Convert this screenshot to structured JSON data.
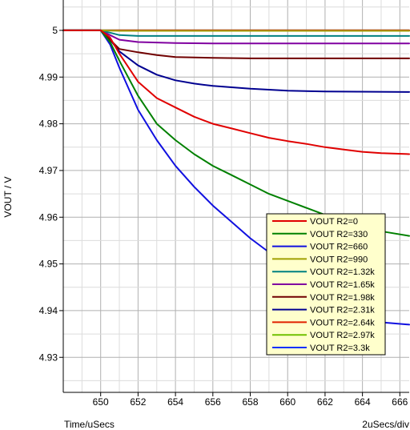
{
  "chart_data": {
    "type": "line",
    "title": "",
    "xlabel": "Time/uSecs",
    "ylabel": "VOUT / V",
    "x_scale_label": "2uSecs/div",
    "xlim": [
      648,
      666.5
    ],
    "ylim": [
      4.9225,
      5.0065
    ],
    "x_ticks": [
      650,
      652,
      654,
      656,
      658,
      660,
      662,
      664,
      666
    ],
    "y_ticks": [
      4.93,
      4.94,
      4.95,
      4.96,
      4.97,
      4.98,
      4.99,
      5
    ],
    "x_tick_labels": [
      "650",
      "652",
      "654",
      "656",
      "658",
      "660",
      "662",
      "664",
      "666"
    ],
    "y_tick_labels": [
      "4.93",
      "4.94",
      "4.95",
      "4.96",
      "4.97",
      "4.98",
      "4.99",
      "5"
    ],
    "grid": true,
    "legend_position": "bottom-right",
    "series": [
      {
        "name": "VOUT R2=0",
        "color": "#e00000",
        "x": [
          648,
          650,
          650.5,
          651,
          652,
          653,
          654,
          655,
          656,
          657,
          658,
          659,
          660,
          661,
          662,
          663,
          664,
          665,
          666.5
        ],
        "y": [
          5.0,
          5.0,
          4.9985,
          4.995,
          4.989,
          4.9855,
          4.9835,
          4.9815,
          4.98,
          4.979,
          4.978,
          4.977,
          4.9763,
          4.9757,
          4.975,
          4.9745,
          4.974,
          4.9737,
          4.9735
        ]
      },
      {
        "name": "VOUT R2=330",
        "color": "#008000",
        "x": [
          648,
          650,
          650.5,
          651,
          652,
          653,
          654,
          655,
          656,
          657,
          658,
          659,
          660,
          661,
          662,
          663,
          664,
          665,
          666.5
        ],
        "y": [
          5.0,
          5.0,
          4.9975,
          4.9935,
          4.986,
          4.98,
          4.9765,
          4.9735,
          4.971,
          4.969,
          4.967,
          4.965,
          4.9635,
          4.962,
          4.9605,
          4.959,
          4.958,
          4.957,
          4.956
        ]
      },
      {
        "name": "VOUT R2=660",
        "color": "#1010e0",
        "x": [
          648,
          650,
          650.5,
          651,
          652,
          653,
          654,
          655,
          656,
          657,
          658,
          659,
          660,
          661,
          662,
          663,
          664,
          665,
          666.5
        ],
        "y": [
          5.0,
          5.0,
          4.997,
          4.992,
          4.983,
          4.9765,
          4.971,
          4.9665,
          4.9625,
          4.959,
          4.9555,
          4.9525,
          4.9495,
          4.9465,
          4.9435,
          4.9405,
          4.9385,
          4.9375,
          4.937
        ]
      },
      {
        "name": "VOUT R2=990",
        "color": "#a0a000",
        "x": [
          648,
          650,
          650.5,
          651,
          652,
          666.5
        ],
        "y": [
          5.0,
          5.0,
          4.99995,
          4.9999,
          4.9999,
          4.9999
        ]
      },
      {
        "name": "VOUT R2=1.32k",
        "color": "#008080",
        "x": [
          648,
          650,
          650.5,
          651,
          652,
          654,
          666.5
        ],
        "y": [
          5.0,
          5.0,
          4.9995,
          4.999,
          4.9988,
          4.9988,
          4.9988
        ]
      },
      {
        "name": "VOUT R2=1.65k",
        "color": "#8000a0",
        "x": [
          648,
          650,
          650.5,
          651,
          652,
          654,
          656,
          666.5
        ],
        "y": [
          5.0,
          5.0,
          4.999,
          4.998,
          4.9975,
          4.9973,
          4.9972,
          4.9972
        ]
      },
      {
        "name": "VOUT R2=1.98k",
        "color": "#700000",
        "x": [
          648,
          650,
          650.5,
          651,
          652,
          653,
          654,
          656,
          658,
          666.5
        ],
        "y": [
          5.0,
          5.0,
          4.998,
          4.996,
          4.9953,
          4.9947,
          4.9943,
          4.9941,
          4.994,
          4.994
        ]
      },
      {
        "name": "VOUT R2=2.31k",
        "color": "#000090",
        "x": [
          648,
          650,
          650.5,
          651,
          652,
          653,
          654,
          655,
          656,
          658,
          660,
          662,
          666.5
        ],
        "y": [
          5.0,
          5.0,
          4.998,
          4.9955,
          4.9925,
          4.9905,
          4.9893,
          4.9886,
          4.9881,
          4.9875,
          4.9871,
          4.9869,
          4.9868
        ]
      },
      {
        "name": "VOUT R2=2.64k",
        "color": "#e02000",
        "x": [
          648,
          650,
          666.5
        ],
        "y": [
          5.0,
          5.0,
          5.0
        ]
      },
      {
        "name": "VOUT R2=2.97k",
        "color": "#70c000",
        "x": [
          648,
          650,
          666.5
        ],
        "y": [
          5.0,
          5.0,
          5.0
        ]
      },
      {
        "name": "VOUT R2=3.3k",
        "color": "#0030ff",
        "x": [
          648,
          650,
          666.5
        ],
        "y": [
          5.0,
          5.0,
          5.0
        ]
      }
    ]
  }
}
